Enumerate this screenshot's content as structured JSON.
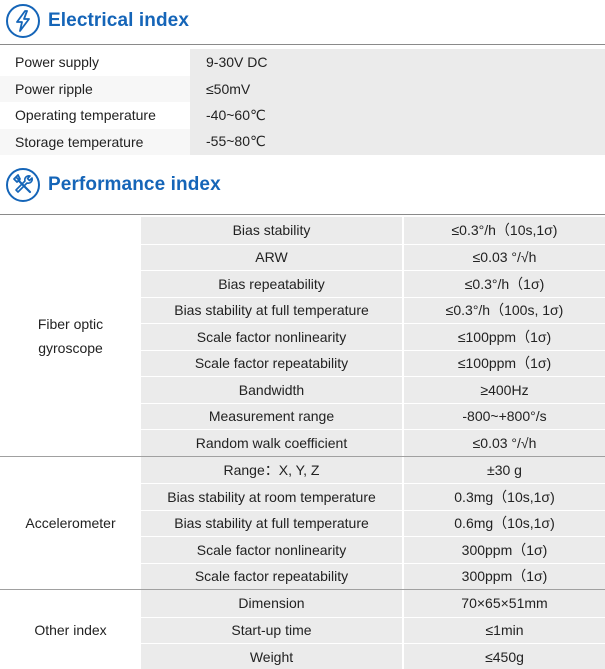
{
  "electrical": {
    "title": "Electrical index",
    "icon": "lightning-icon",
    "rows": [
      {
        "name": "Power supply",
        "value": "9-30V DC"
      },
      {
        "name": "Power ripple",
        "value": "≤50mV"
      },
      {
        "name": "Operating temperature",
        "value": "-40~60℃"
      },
      {
        "name": "Storage temperature",
        "value": "-55~80℃"
      }
    ]
  },
  "performance": {
    "title": "Performance index",
    "icon": "wrench-screwdriver-icon",
    "groups": [
      {
        "name_line1": "Fiber optic",
        "name_line2": "gyroscope",
        "rows": [
          {
            "name": "Bias stability",
            "value": "≤0.3°/h（10s,1σ)"
          },
          {
            "name": "ARW",
            "value": "≤0.03 °/√h"
          },
          {
            "name": "Bias repeatability",
            "value": "≤0.3°/h（1σ)"
          },
          {
            "name": "Bias stability at full temperature",
            "value": "≤0.3°/h（100s, 1σ)"
          },
          {
            "name": "Scale factor nonlinearity",
            "value": "≤100ppm（1σ)"
          },
          {
            "name": "Scale factor repeatability",
            "value": "≤100ppm（1σ)"
          },
          {
            "name": "Bandwidth",
            "value": "≥400Hz"
          },
          {
            "name": "Measurement range",
            "value": "-800~+800°/s"
          },
          {
            "name": "Random walk coefficient",
            "value": "≤0.03 °/√h"
          }
        ]
      },
      {
        "name_line1": "Accelerometer",
        "name_line2": "",
        "rows": [
          {
            "name": "Range：X, Y, Z",
            "value": "±30 g"
          },
          {
            "name": "Bias stability at room temperature",
            "value": "0.3mg（10s,1σ)"
          },
          {
            "name": "Bias stability at full temperature",
            "value": "0.6mg（10s,1σ)"
          },
          {
            "name": "Scale factor nonlinearity",
            "value": "300ppm（1σ)"
          },
          {
            "name": "Scale factor repeatability",
            "value": "300ppm（1σ)"
          }
        ]
      },
      {
        "name_line1": "Other index",
        "name_line2": "",
        "rows": [
          {
            "name": "Dimension",
            "value": "70×65×51mm"
          },
          {
            "name": "Start-up time",
            "value": "≤1min"
          },
          {
            "name": "Weight",
            "value": "≤450g"
          }
        ]
      }
    ]
  },
  "colors": {
    "accent": "#1565b8",
    "cell": "#ebebeb",
    "rule": "#8a8a8a"
  }
}
